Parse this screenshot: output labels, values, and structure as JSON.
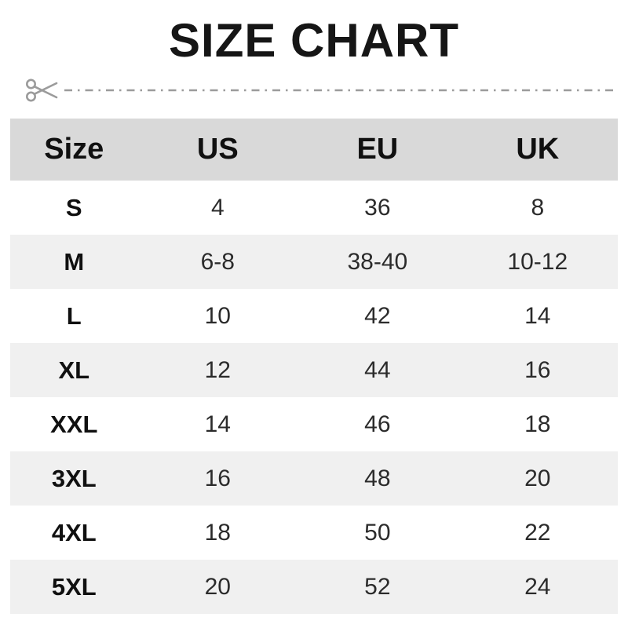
{
  "title": "SIZE CHART",
  "icons": {
    "scissors": "scissors-icon"
  },
  "colors": {
    "header_bg": "#d9d9d9",
    "alt_row_bg": "#f0f0f0",
    "title_color": "#161616",
    "label_color": "#101010",
    "value_color": "#2b2b2b",
    "cut_line_color": "#9b9b9b",
    "page_bg": "#ffffff"
  },
  "chart_data": {
    "type": "table",
    "title": "SIZE CHART",
    "headers": [
      "Size",
      "US",
      "EU",
      "UK"
    ],
    "rows": [
      [
        "S",
        "4",
        "36",
        "8"
      ],
      [
        "M",
        "6-8",
        "38-40",
        "10-12"
      ],
      [
        "L",
        "10",
        "42",
        "14"
      ],
      [
        "XL",
        "12",
        "44",
        "16"
      ],
      [
        "XXL",
        "14",
        "46",
        "18"
      ],
      [
        "3XL",
        "16",
        "48",
        "20"
      ],
      [
        "4XL",
        "18",
        "50",
        "22"
      ],
      [
        "5XL",
        "20",
        "52",
        "24"
      ]
    ],
    "layout": {
      "alternating_row_shading": true,
      "first_shaded_data_row_index": 1,
      "column_alignment": "center"
    }
  }
}
